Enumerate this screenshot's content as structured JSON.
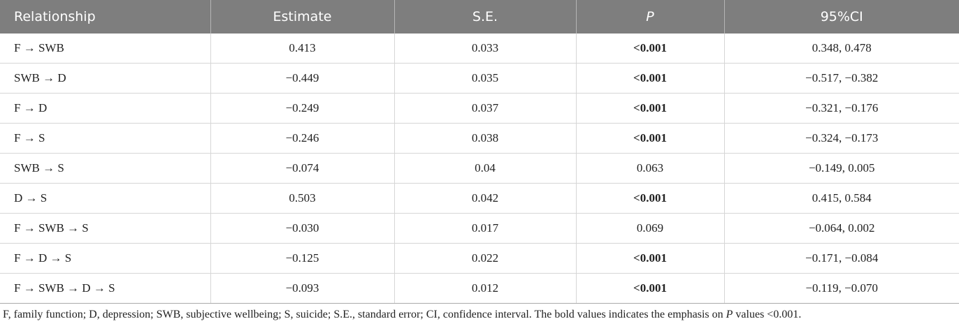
{
  "table": {
    "header": [
      "Relationship",
      "Estimate",
      "S.E.",
      "P",
      "95%CI"
    ],
    "rows": [
      [
        "F → SWB",
        "0.413",
        "0.033",
        "<0.001",
        "0.348, 0.478"
      ],
      [
        "SWB → D",
        "−0.449",
        "0.035",
        "<0.001",
        "−0.517, −0.382"
      ],
      [
        "F → D",
        "−0.249",
        "0.037",
        "<0.001",
        "−0.321, −0.176"
      ],
      [
        "F → S",
        "−0.246",
        "0.038",
        "<0.001",
        "−0.324, −0.173"
      ],
      [
        "SWB → S",
        "−0.074",
        "0.04",
        "0.063",
        "−0.149, 0.005"
      ],
      [
        "D → S",
        "0.503",
        "0.042",
        "<0.001",
        "0.415, 0.584"
      ],
      [
        "F → SWB → S",
        "−0.030",
        "0.017",
        "0.069",
        "−0.064, 0.002"
      ],
      [
        "F → D → S",
        "−0.125",
        "0.022",
        "<0.001",
        "−0.171, −0.084"
      ],
      [
        "F → SWB → D → S",
        "−0.093",
        "0.012",
        "<0.001",
        "−0.119, −0.070"
      ]
    ]
  },
  "footnote": [
    "F, family function; D, depression; SWB, subjective wellbeing; S, suicide; S.E., standard error; CI, confidence interval. The bold values indicates the emphasis on ",
    "P",
    " values <0.001."
  ]
}
